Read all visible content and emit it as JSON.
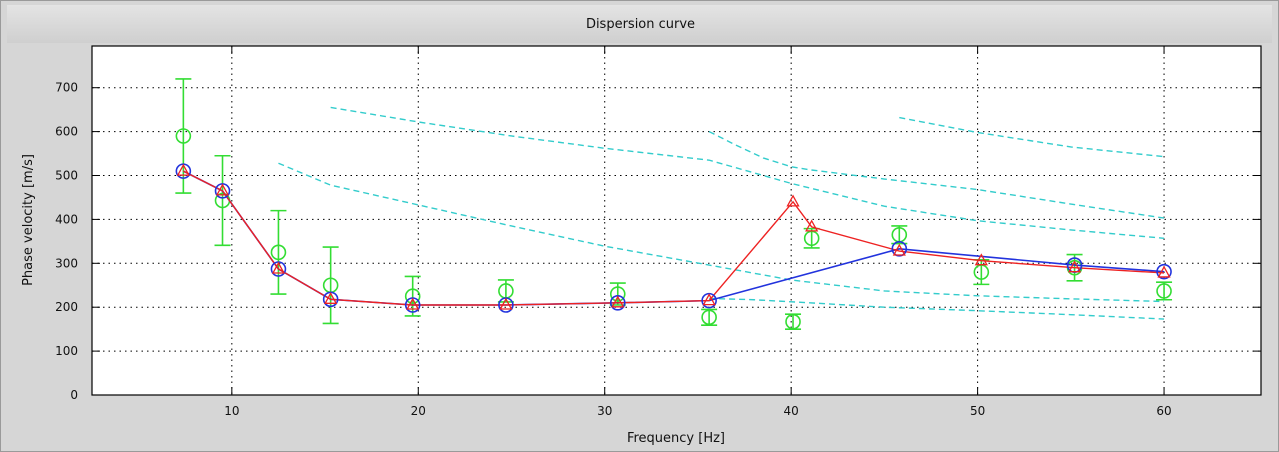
{
  "chart_data": {
    "type": "line",
    "title": "Dispersion curve",
    "xlabel": "Frequency [Hz]",
    "ylabel": "Phase velocity  [m/s]",
    "xlim": [
      2.5,
      65.2
    ],
    "ylim": [
      0,
      795
    ],
    "xticks": [
      10,
      20,
      30,
      40,
      50,
      60
    ],
    "yticks": [
      0,
      100,
      200,
      300,
      400,
      500,
      600,
      700
    ],
    "grid": true,
    "colors": {
      "observed": "#33dd33",
      "model_red": "#ee2222",
      "model_blue": "#2233dd",
      "modes": "#33cccc"
    },
    "series": [
      {
        "style": "observed",
        "x": [
          7.4,
          9.5,
          12.5,
          15.3,
          19.7,
          24.7,
          30.7,
          35.6,
          40.1,
          41.1,
          45.8,
          50.2,
          55.2,
          60.0
        ],
        "y": [
          590,
          443,
          325,
          250,
          225,
          237,
          230,
          177,
          167,
          357,
          365,
          280,
          290,
          237
        ],
        "err": [
          130,
          102,
          95,
          87,
          45,
          25,
          25,
          18,
          17,
          22,
          20,
          28,
          30,
          20
        ]
      },
      {
        "style": "model_red",
        "marker": "triangle",
        "x": [
          7.4,
          9.5,
          12.5,
          15.3,
          19.7,
          24.7,
          30.7,
          35.6,
          40.1,
          41.1,
          45.8,
          50.2,
          55.2,
          60.0
        ],
        "y": [
          510,
          465,
          287,
          218,
          205,
          205,
          210,
          215,
          440,
          383,
          328,
          306,
          290,
          278
        ]
      },
      {
        "style": "model_blue",
        "marker": "circle",
        "x": [
          7.4,
          9.5,
          12.5,
          15.3,
          19.7,
          24.7,
          30.7,
          35.6,
          45.8,
          55.2,
          60.0
        ],
        "y": [
          510,
          465,
          287,
          218,
          205,
          205,
          210,
          215,
          333,
          296,
          281
        ]
      },
      {
        "style": "modes",
        "dashed": true,
        "x": [
          15.3,
          20,
          25,
          30,
          35.6,
          40,
          45,
          50,
          55,
          60
        ],
        "y": [
          655,
          622,
          590,
          562,
          535,
          482,
          430,
          397,
          376,
          357
        ]
      },
      {
        "style": "modes",
        "dashed": true,
        "x": [
          12.5,
          15.3,
          20,
          25,
          30,
          35.6,
          40,
          45,
          50,
          55,
          60
        ],
        "y": [
          528,
          478,
          433,
          385,
          339,
          296,
          262,
          237,
          226,
          219,
          213
        ]
      },
      {
        "style": "modes",
        "dashed": true,
        "x": [
          35.6,
          38,
          41,
          45,
          50,
          55,
          60
        ],
        "y": [
          220,
          217,
          210,
          200,
          192,
          183,
          173
        ]
      },
      {
        "style": "modes",
        "dashed": true,
        "x": [
          35.6,
          37,
          38.5,
          40,
          41,
          45,
          50,
          55,
          60
        ],
        "y": [
          600,
          570,
          540,
          520,
          513,
          492,
          468,
          435,
          403
        ]
      },
      {
        "style": "modes",
        "dashed": true,
        "x": [
          45.8,
          50,
          55,
          60
        ],
        "y": [
          632,
          598,
          565,
          543
        ]
      }
    ]
  }
}
